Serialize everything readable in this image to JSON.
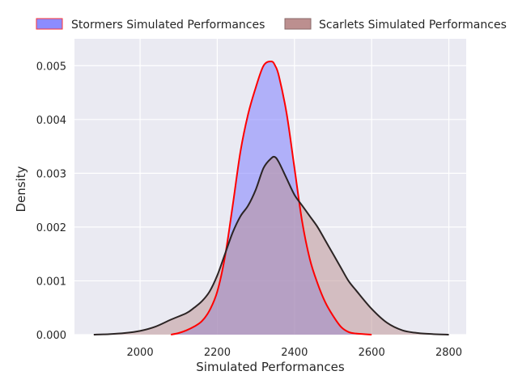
{
  "chart_data": {
    "type": "area",
    "title": "",
    "xlabel": "Simulated Performances",
    "ylabel": "Density",
    "xlim": [
      1830,
      2845
    ],
    "ylim": [
      0,
      0.0055
    ],
    "xticks": [
      2000,
      2200,
      2400,
      2600,
      2800
    ],
    "yticks": [
      0.0,
      0.001,
      0.002,
      0.003,
      0.004,
      0.005
    ],
    "xtick_labels": [
      "2000",
      "2200",
      "2400",
      "2600",
      "2800"
    ],
    "ytick_labels": [
      "0.000",
      "0.001",
      "0.002",
      "0.003",
      "0.004",
      "0.005"
    ],
    "grid": true,
    "legend_position": "top-center",
    "series": [
      {
        "name": "Stormers Simulated Performances",
        "fill": "#8080ff",
        "fill_opacity": 0.55,
        "line": "#ff0000",
        "x": [
          2080,
          2100,
          2120,
          2140,
          2160,
          2180,
          2200,
          2220,
          2240,
          2260,
          2280,
          2300,
          2320,
          2340,
          2350,
          2360,
          2380,
          2400,
          2420,
          2440,
          2460,
          2480,
          2500,
          2520,
          2540,
          2560,
          2580,
          2600
        ],
        "y": [
          0.0,
          3e-05,
          8e-05,
          0.00015,
          0.00025,
          0.00045,
          0.0008,
          0.00145,
          0.0024,
          0.0034,
          0.0041,
          0.0046,
          0.005,
          0.00508,
          0.005,
          0.0048,
          0.0041,
          0.0031,
          0.0021,
          0.0014,
          0.00095,
          0.0006,
          0.00035,
          0.00015,
          5e-05,
          2e-05,
          1e-05,
          0.0
        ]
      },
      {
        "name": "Scarlets Simulated Performances",
        "fill": "#bc8f8f",
        "fill_opacity": 0.5,
        "line": "#2b2424",
        "x": [
          1880,
          1920,
          1960,
          2000,
          2040,
          2080,
          2120,
          2140,
          2160,
          2180,
          2200,
          2220,
          2240,
          2260,
          2280,
          2300,
          2320,
          2340,
          2350,
          2360,
          2380,
          2400,
          2420,
          2440,
          2460,
          2480,
          2500,
          2520,
          2540,
          2560,
          2600,
          2640,
          2680,
          2720,
          2760,
          2800
        ],
        "y": [
          0.0,
          1e-05,
          3e-05,
          7e-05,
          0.00015,
          0.00028,
          0.0004,
          0.0005,
          0.00062,
          0.0008,
          0.0011,
          0.0015,
          0.0019,
          0.0022,
          0.0024,
          0.0027,
          0.0031,
          0.00328,
          0.0033,
          0.0032,
          0.0029,
          0.0026,
          0.0024,
          0.0022,
          0.002,
          0.00175,
          0.0015,
          0.00125,
          0.001,
          0.00082,
          0.00048,
          0.00022,
          8e-05,
          3e-05,
          1e-05,
          0.0
        ]
      }
    ]
  }
}
